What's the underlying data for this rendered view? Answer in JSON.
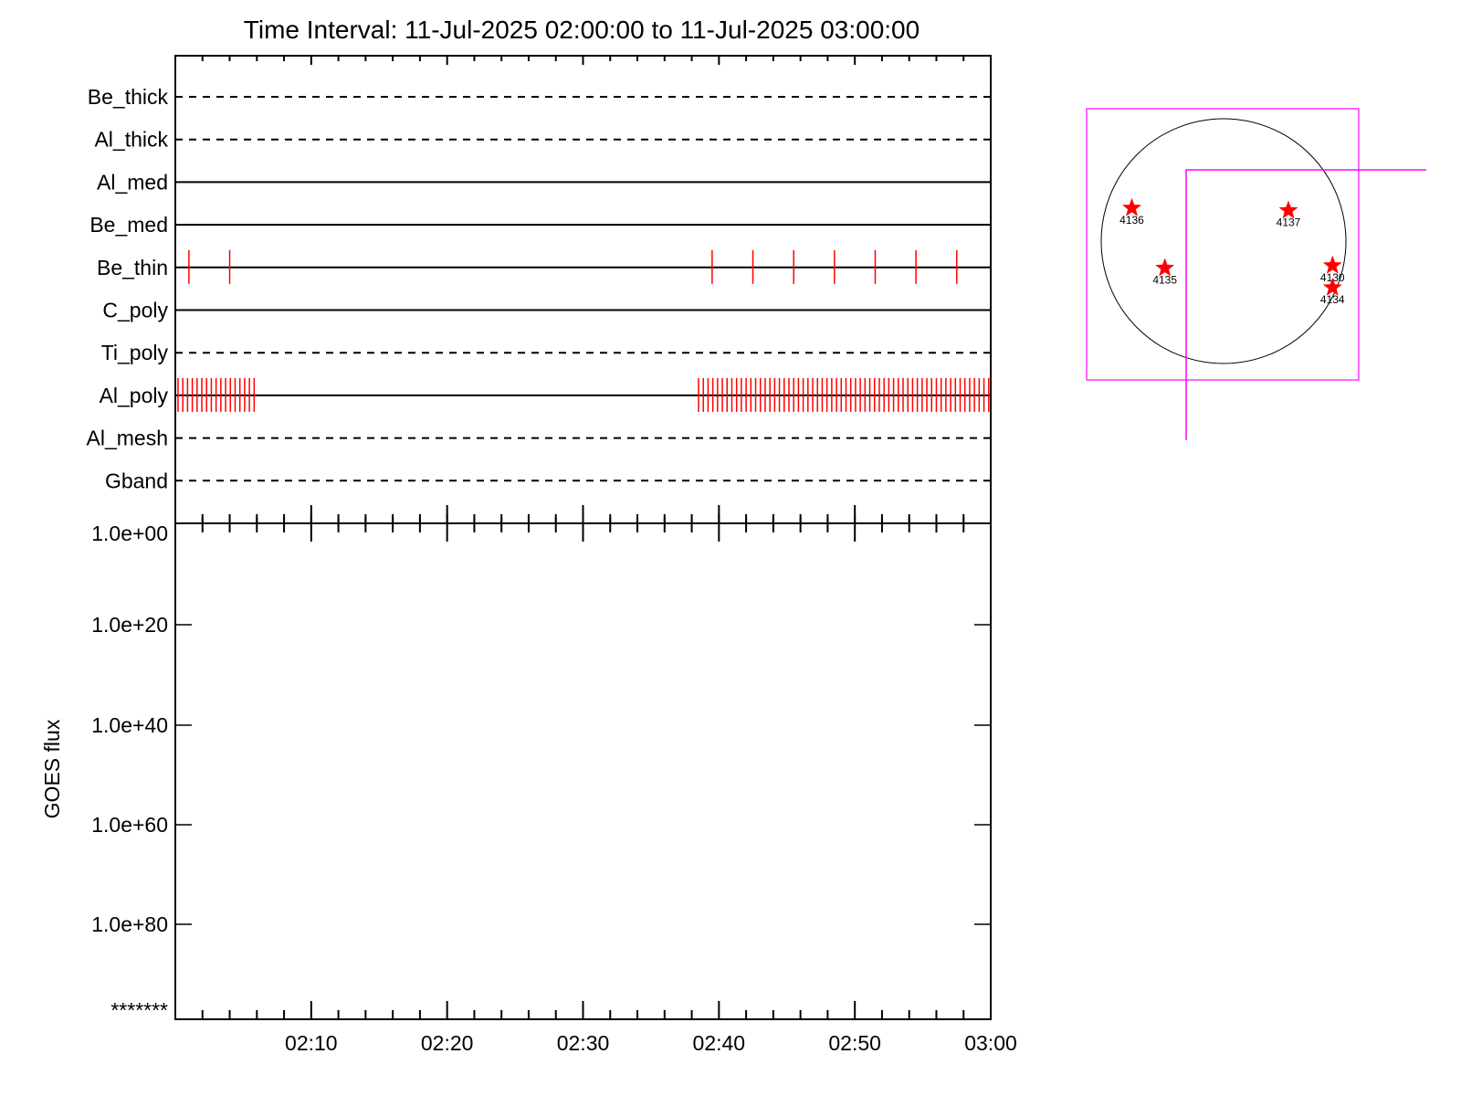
{
  "chart_data": [
    {
      "type": "timeline",
      "title": "Time Interval: 11-Jul-2025 02:00:00 to 11-Jul-2025 03:00:00",
      "x_range": [
        "02:00",
        "03:00"
      ],
      "channels": [
        {
          "name": "Be_thick",
          "line": "dashed",
          "events": []
        },
        {
          "name": "Al_thick",
          "line": "dashed",
          "events": []
        },
        {
          "name": "Al_med",
          "line": "solid",
          "events": []
        },
        {
          "name": "Be_med",
          "line": "solid",
          "events": []
        },
        {
          "name": "Be_thin",
          "line": "solid",
          "events": [
            "02:01",
            "02:04",
            "02:39.5",
            "02:42.5",
            "02:45.5",
            "02:48.5",
            "02:51.5",
            "02:54.5",
            "02:57.5"
          ]
        },
        {
          "name": "C_poly",
          "line": "solid",
          "events": []
        },
        {
          "name": "Ti_poly",
          "line": "dashed",
          "events": []
        },
        {
          "name": "Al_poly",
          "line": "solid",
          "event_spans": [
            {
              "from": "02:00.2",
              "to": "02:06",
              "step_min": 0.35
            },
            {
              "from": "02:38.5",
              "to": "03:00",
              "step_min": 0.35
            }
          ]
        },
        {
          "name": "Al_mesh",
          "line": "dashed",
          "events": []
        },
        {
          "name": "Gband",
          "line": "dashed",
          "events": []
        }
      ],
      "event_color": "#ff0000"
    },
    {
      "type": "line",
      "ylabel": "GOES flux",
      "y_tick_labels": [
        "1.0e+00",
        "1.0e+20",
        "1.0e+40",
        "1.0e+60",
        "1.0e+80",
        "*******"
      ],
      "x_tick_labels": [
        "02:10",
        "02:20",
        "02:30",
        "02:40",
        "02:50",
        "03:00"
      ],
      "x_range": [
        "02:00",
        "03:00"
      ],
      "series": []
    },
    {
      "type": "scatter",
      "description_free": true,
      "points": [
        {
          "label": "4136",
          "x": -0.75,
          "y": 0.27
        },
        {
          "label": "4137",
          "x": 0.53,
          "y": 0.25
        },
        {
          "label": "4135",
          "x": -0.48,
          "y": -0.22
        },
        {
          "label": "4130",
          "x": 0.89,
          "y": -0.2
        },
        {
          "label": "4134",
          "x": 0.89,
          "y": -0.38
        }
      ],
      "marker_color": "#ff0000",
      "frame_color": "#ff00ff"
    }
  ]
}
